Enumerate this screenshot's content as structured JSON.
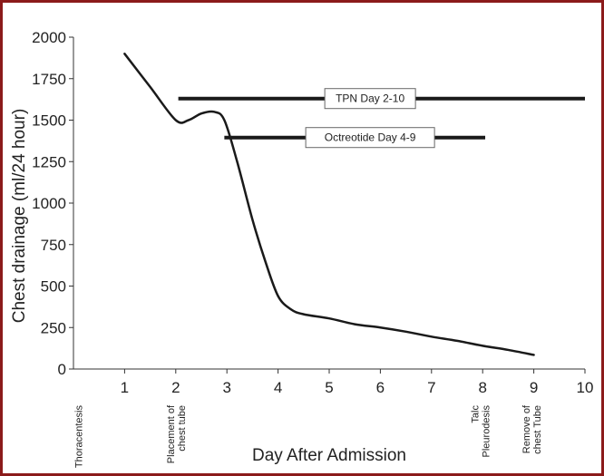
{
  "chart_data": {
    "type": "line",
    "title": "",
    "xlabel": "Day After Admission",
    "ylabel": "Chest drainage (ml/24 hour)",
    "xlim": [
      0,
      10
    ],
    "ylim": [
      0,
      2000
    ],
    "x_ticks": [
      1,
      2,
      3,
      4,
      5,
      6,
      7,
      8,
      9,
      10
    ],
    "y_ticks": [
      0,
      250,
      500,
      750,
      1000,
      1250,
      1500,
      1750,
      2000
    ],
    "line_color": "#1a1a1a",
    "series": [
      {
        "x": [
          1,
          1.5,
          2,
          2.25,
          2.5,
          2.75,
          2.95,
          3.2,
          3.5,
          3.75,
          4,
          4.25,
          4.5,
          5,
          5.5,
          6,
          6.5,
          7,
          7.5,
          8,
          8.5,
          9
        ],
        "y": [
          1900,
          1700,
          1500,
          1500,
          1540,
          1550,
          1500,
          1250,
          900,
          650,
          440,
          360,
          330,
          305,
          270,
          250,
          225,
          195,
          170,
          140,
          115,
          85
        ]
      }
    ],
    "annotations": [
      {
        "label": "TPN Day 2-10",
        "x_start": 2.05,
        "x_end": 10,
        "y": 1630,
        "label_x": 5.8
      },
      {
        "label": "Octreotide Day 4-9",
        "x_start": 2.95,
        "x_end": 8.05,
        "y": 1395,
        "label_x": 5.8
      }
    ],
    "events": [
      {
        "label": "Thoracentesis",
        "x": 0.1
      },
      {
        "label": "Placement of chest tube",
        "x": 2
      },
      {
        "label": "Talc Pleurodesis",
        "x": 7.95
      },
      {
        "label": "Remove of chest Tube",
        "x": 8.95
      }
    ]
  }
}
